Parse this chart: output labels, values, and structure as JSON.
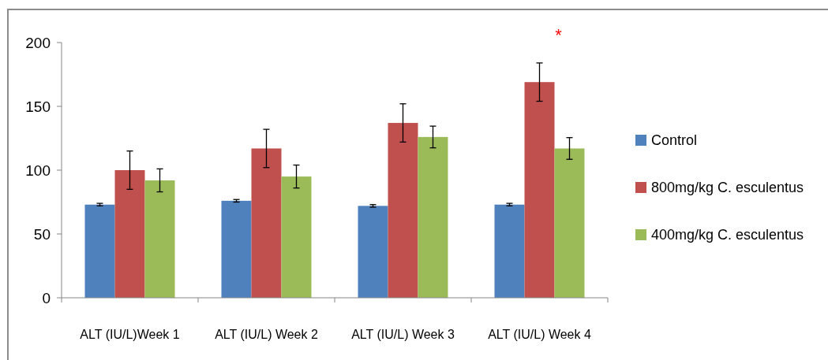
{
  "chart_data": {
    "type": "bar",
    "categories": [
      "ALT (IU/L)Week 1",
      "ALT (IU/L) Week 2",
      "ALT (IU/L) Week 3",
      "ALT (IU/L) Week 4"
    ],
    "series": [
      {
        "name": "Control",
        "color": "#4f81bd",
        "values": [
          73,
          76,
          72,
          73
        ],
        "errors": [
          1,
          1,
          1,
          1
        ]
      },
      {
        "name": "800mg/kg C. esculentus",
        "color": "#c0504d",
        "values": [
          100,
          117,
          137,
          169
        ],
        "errors": [
          15,
          15,
          15,
          15
        ]
      },
      {
        "name": "400mg/kg C. esculentus",
        "color": "#9bbb59",
        "values": [
          92,
          95,
          126,
          117
        ],
        "errors": [
          9,
          9,
          8.5,
          8.5
        ]
      }
    ],
    "ylim": [
      0,
      200
    ],
    "yticks": [
      0,
      50,
      100,
      150,
      200
    ],
    "grid": false,
    "legend": "right",
    "annotations": [
      "*"
    ]
  }
}
